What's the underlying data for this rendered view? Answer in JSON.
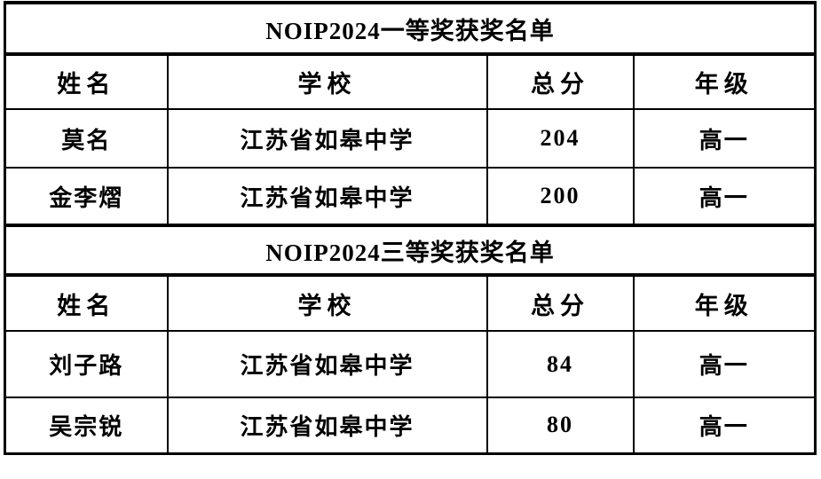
{
  "page": {
    "background_color": "#ffffff",
    "border_color": "#000000",
    "text_color": "#000000"
  },
  "table": {
    "sections": [
      {
        "title": "NOIP2024一等奖获奖名单",
        "headers": [
          "姓名",
          "学校",
          "总分",
          "年级"
        ],
        "rows": [
          [
            "莫名",
            "江苏省如皋中学",
            "204",
            "高一"
          ],
          [
            "金李熠",
            "江苏省如皋中学",
            "200",
            "高一"
          ]
        ]
      },
      {
        "title": "NOIP2024三等奖获奖名单",
        "headers": [
          "姓名",
          "学校",
          "总分",
          "年级"
        ],
        "rows": [
          [
            "刘子路",
            "江苏省如皋中学",
            "84",
            "高一"
          ],
          [
            "吴宗锐",
            "江苏省如皋中学",
            "80",
            "高一"
          ]
        ]
      }
    ]
  }
}
